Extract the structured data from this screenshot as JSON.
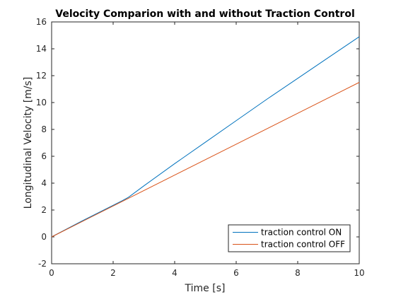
{
  "chart_data": {
    "type": "line",
    "title": "Velocity Comparion with and without Traction Control",
    "xlabel": "Time [s]",
    "ylabel": "Longitudinal Velocity [m/s]",
    "xlim": [
      0,
      10
    ],
    "ylim": [
      -2,
      16
    ],
    "xticks": [
      0,
      2,
      4,
      6,
      8,
      10
    ],
    "yticks": [
      -2,
      0,
      2,
      4,
      6,
      8,
      10,
      12,
      14,
      16
    ],
    "grid": false,
    "legend_position": "bottom-right",
    "series": [
      {
        "name": "traction control ON",
        "color": "#0072BD",
        "x": [
          0,
          1,
          2,
          2.3,
          2.5,
          3,
          4,
          5,
          6,
          7,
          8,
          9,
          10
        ],
        "y": [
          0,
          1.2,
          2.35,
          2.7,
          2.95,
          3.8,
          5.45,
          7.05,
          8.65,
          10.25,
          11.8,
          13.35,
          14.9
        ]
      },
      {
        "name": "traction control OFF",
        "color": "#D95319",
        "x": [
          0,
          2,
          4,
          6,
          8,
          10
        ],
        "y": [
          0,
          2.3,
          4.6,
          6.9,
          9.2,
          11.5
        ]
      }
    ]
  }
}
